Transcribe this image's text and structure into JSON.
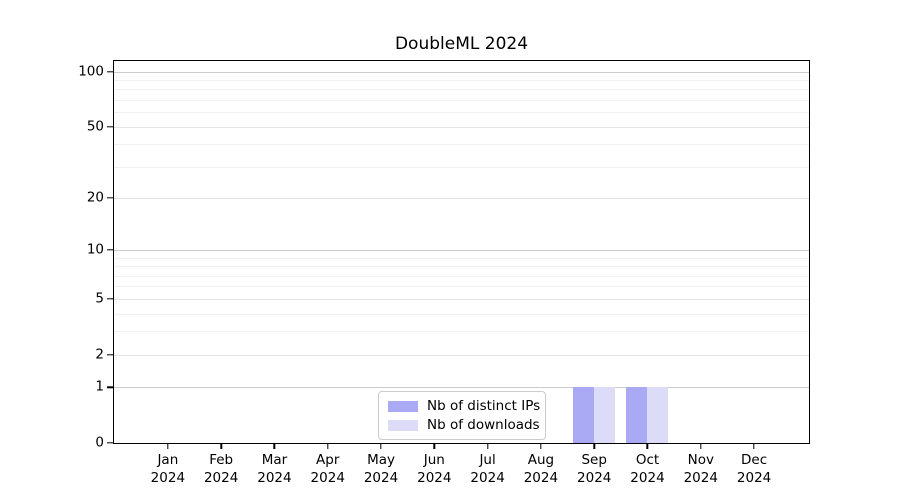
{
  "chart_data": {
    "type": "bar",
    "title": "DoubleML 2024",
    "categories": [
      "Jan",
      "Feb",
      "Mar",
      "Apr",
      "May",
      "Jun",
      "Jul",
      "Aug",
      "Sep",
      "Oct",
      "Nov",
      "Dec"
    ],
    "xtick_year_line": "2024",
    "series": [
      {
        "name": "Nb of distinct IPs",
        "color": "#aaaaf4",
        "values": [
          0,
          0,
          0,
          0,
          0,
          0,
          0,
          0,
          1,
          1,
          0,
          0
        ]
      },
      {
        "name": "Nb of downloads",
        "color": "#dcdcf9",
        "values": [
          0,
          0,
          0,
          0,
          0,
          0,
          0,
          0,
          1,
          1,
          0,
          0
        ]
      }
    ],
    "yscale": "log1p",
    "ylim": [
      0,
      115
    ],
    "yticks": [
      0,
      1,
      2,
      5,
      10,
      20,
      50,
      100
    ],
    "minor_yticks": [
      3,
      4,
      6,
      7,
      8,
      9,
      30,
      40,
      60,
      70,
      80,
      90
    ],
    "grid": true,
    "legend_position": "lower center",
    "colors": {
      "spine": "#000000",
      "grid_decade": "#cccccc",
      "grid_labeled": "#e4e4e4",
      "grid_minor": "#f0f0f0",
      "text": "#000000",
      "legend_border": "#cccccc",
      "background": "#ffffff"
    }
  }
}
